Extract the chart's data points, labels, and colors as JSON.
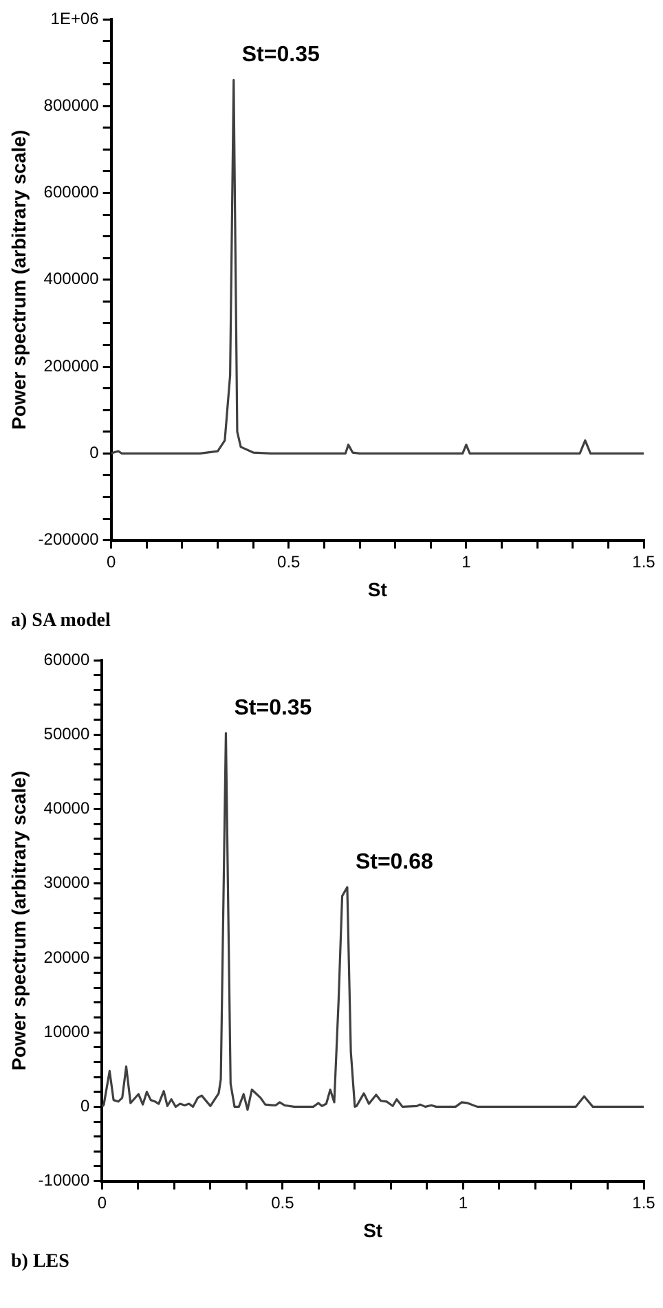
{
  "chart_data": [
    {
      "type": "line",
      "xlabel": "St",
      "ylabel": "Power spectrum (arbitrary scale)",
      "xlim": [
        0,
        1.5
      ],
      "ylim": [
        -200000,
        1000000
      ],
      "xticks": [
        0,
        {
          "value": 0.1,
          "label": null
        },
        {
          "value": 0.2,
          "label": null
        },
        {
          "value": 0.3,
          "label": null
        },
        {
          "value": 0.4,
          "label": null
        },
        0.5,
        {
          "value": 0.6,
          "label": null
        },
        {
          "value": 0.7,
          "label": null
        },
        {
          "value": 0.8,
          "label": null
        },
        {
          "value": 0.9,
          "label": null
        },
        1,
        {
          "value": 1.1,
          "label": null
        },
        {
          "value": 1.2,
          "label": null
        },
        {
          "value": 1.3,
          "label": null
        },
        {
          "value": 1.4,
          "label": null
        },
        1.5
      ],
      "yticks": [
        -200000,
        {
          "value": -150000,
          "label": null
        },
        {
          "value": -100000,
          "label": null
        },
        {
          "value": -50000,
          "label": null
        },
        0,
        {
          "value": 50000,
          "label": null
        },
        {
          "value": 100000,
          "label": null
        },
        {
          "value": 150000,
          "label": null
        },
        200000,
        {
          "value": 250000,
          "label": null
        },
        {
          "value": 300000,
          "label": null
        },
        {
          "value": 350000,
          "label": null
        },
        400000,
        {
          "value": 450000,
          "label": null
        },
        {
          "value": 500000,
          "label": null
        },
        {
          "value": 550000,
          "label": null
        },
        600000,
        {
          "value": 650000,
          "label": null
        },
        {
          "value": 700000,
          "label": null
        },
        {
          "value": 750000,
          "label": null
        },
        800000,
        {
          "value": 850000,
          "label": null
        },
        {
          "value": 900000,
          "label": null
        },
        {
          "value": 950000,
          "label": null
        },
        {
          "value": 1000000,
          "label": "1E+06"
        }
      ],
      "grid": false,
      "legend": false,
      "marker": "none",
      "line_style": "solid",
      "series": [
        {
          "color": "#404040",
          "x": [
            0,
            0.01,
            0.02,
            0.03,
            0.25,
            0.3,
            0.32,
            0.335,
            0.345,
            0.355,
            0.365,
            0.4,
            0.45,
            0.66,
            0.668,
            0.68,
            0.7,
            0.99,
            1.0,
            1.01,
            1.32,
            1.335,
            1.35,
            1.5
          ],
          "values": [
            0,
            3000,
            5000,
            0,
            0,
            5000,
            30000,
            180000,
            860000,
            50000,
            15000,
            2000,
            0,
            0,
            20000,
            2000,
            0,
            0,
            20000,
            0,
            0,
            30000,
            0,
            0
          ]
        }
      ],
      "annotations": [
        {
          "text": "St=0.35",
          "x": 0.345,
          "y": 860000
        },
        "a) SA model"
      ]
    },
    {
      "type": "line",
      "xlabel": "St",
      "ylabel": "Power spectrum (arbitrary scale)",
      "xlim": [
        0,
        1.5
      ],
      "ylim": [
        -10000,
        60000
      ],
      "xticks": [
        0,
        {
          "value": 0.1,
          "label": null
        },
        {
          "value": 0.2,
          "label": null
        },
        {
          "value": 0.3,
          "label": null
        },
        {
          "value": 0.4,
          "label": null
        },
        0.5,
        {
          "value": 0.6,
          "label": null
        },
        {
          "value": 0.7,
          "label": null
        },
        {
          "value": 0.8,
          "label": null
        },
        {
          "value": 0.9,
          "label": null
        },
        1,
        {
          "value": 1.1,
          "label": null
        },
        {
          "value": 1.2,
          "label": null
        },
        {
          "value": 1.3,
          "label": null
        },
        {
          "value": 1.4,
          "label": null
        },
        1.5
      ],
      "yticks": [
        -10000,
        {
          "value": -8000,
          "label": null
        },
        {
          "value": -6000,
          "label": null
        },
        {
          "value": -4000,
          "label": null
        },
        {
          "value": -2000,
          "label": null
        },
        0,
        {
          "value": 2000,
          "label": null
        },
        {
          "value": 4000,
          "label": null
        },
        {
          "value": 6000,
          "label": null
        },
        {
          "value": 8000,
          "label": null
        },
        10000,
        {
          "value": 12000,
          "label": null
        },
        {
          "value": 14000,
          "label": null
        },
        {
          "value": 16000,
          "label": null
        },
        {
          "value": 18000,
          "label": null
        },
        20000,
        {
          "value": 22000,
          "label": null
        },
        {
          "value": 24000,
          "label": null
        },
        {
          "value": 26000,
          "label": null
        },
        {
          "value": 28000,
          "label": null
        },
        30000,
        {
          "value": 32000,
          "label": null
        },
        {
          "value": 34000,
          "label": null
        },
        {
          "value": 36000,
          "label": null
        },
        {
          "value": 38000,
          "label": null
        },
        40000,
        {
          "value": 42000,
          "label": null
        },
        {
          "value": 44000,
          "label": null
        },
        {
          "value": 46000,
          "label": null
        },
        {
          "value": 48000,
          "label": null
        },
        50000,
        {
          "value": 52000,
          "label": null
        },
        {
          "value": 54000,
          "label": null
        },
        {
          "value": 56000,
          "label": null
        },
        {
          "value": 58000,
          "label": null
        },
        60000
      ],
      "grid": false,
      "legend": false,
      "marker": "none",
      "line_style": "solid",
      "series": [
        {
          "color": "#404040",
          "x": [
            0,
            0.005,
            0.021,
            0.032,
            0.045,
            0.056,
            0.067,
            0.079,
            0.101,
            0.113,
            0.124,
            0.135,
            0.147,
            0.157,
            0.171,
            0.181,
            0.192,
            0.204,
            0.216,
            0.229,
            0.241,
            0.252,
            0.265,
            0.276,
            0.3,
            0.323,
            0.329,
            0.343,
            0.356,
            0.367,
            0.379,
            0.392,
            0.403,
            0.415,
            0.439,
            0.452,
            0.472,
            0.481,
            0.492,
            0.505,
            0.532,
            0.585,
            0.599,
            0.609,
            0.621,
            0.632,
            0.643,
            0.655,
            0.665,
            0.679,
            0.689,
            0.7,
            0.705,
            0.725,
            0.739,
            0.759,
            0.772,
            0.788,
            0.805,
            0.816,
            0.832,
            0.872,
            0.881,
            0.895,
            0.912,
            0.925,
            0.979,
            0.996,
            1.012,
            1.039,
            1.312,
            1.335,
            1.359,
            1.5
          ],
          "values": [
            0,
            300,
            4800,
            900,
            700,
            1200,
            5400,
            500,
            1700,
            300,
            2000,
            900,
            700,
            400,
            2100,
            100,
            1000,
            0,
            400,
            200,
            400,
            0,
            1200,
            1500,
            100,
            1800,
            3700,
            50200,
            3100,
            0,
            0,
            1700,
            -400,
            2300,
            1200,
            300,
            200,
            200,
            600,
            200,
            0,
            0,
            500,
            100,
            400,
            2300,
            600,
            14200,
            28300,
            29500,
            7400,
            0,
            100,
            1800,
            400,
            1600,
            800,
            700,
            100,
            1000,
            0,
            100,
            300,
            0,
            200,
            0,
            0,
            600,
            500,
            0,
            0,
            1400,
            0,
            0
          ]
        }
      ],
      "annotations": [
        {
          "text": "St=0.35",
          "x": 0.343,
          "y": 50200
        },
        {
          "text": "St=0.68",
          "x": 0.679,
          "y": 29500
        },
        "b) LES"
      ]
    }
  ]
}
